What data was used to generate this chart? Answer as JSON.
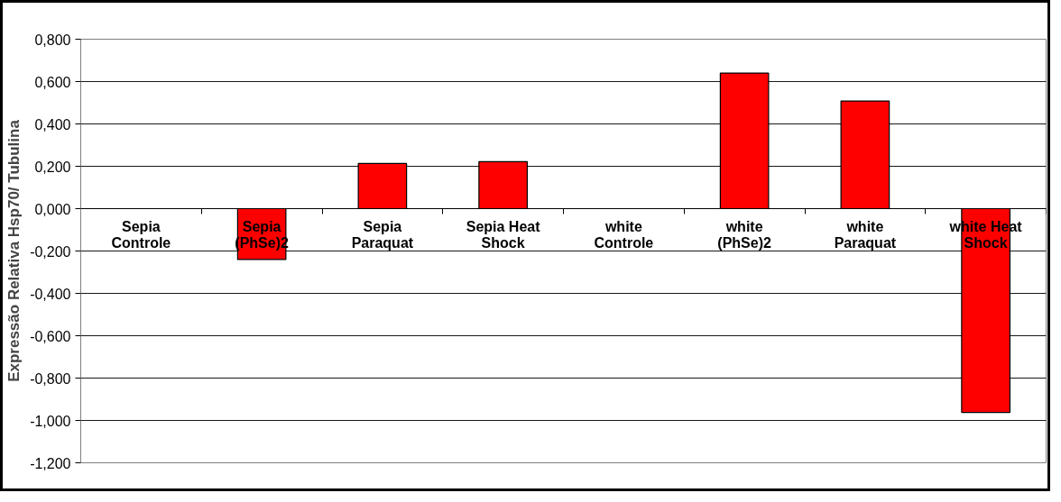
{
  "chart_data": {
    "type": "bar",
    "ylabel": "Expressão Relativa Hsp70/ Tubulina",
    "categories": [
      "Sepia\nControle",
      "Sepia\n(PhSe)2",
      "Sepia\nParaquat",
      "Sepia Heat\nShock",
      "white\nControle",
      "white\n(PhSe)2",
      "white\nParaquat",
      "white Heat\nShock"
    ],
    "values": [
      0,
      -0.24,
      0.213,
      0.222,
      0,
      0.64,
      0.508,
      -0.962
    ],
    "color": "#ff0000",
    "ylim": [
      -1.2,
      0.8
    ],
    "yticks": [
      {
        "value": -1.2,
        "label": "-1,200"
      },
      {
        "value": -1.0,
        "label": "-1,000"
      },
      {
        "value": -0.8,
        "label": "-0,800"
      },
      {
        "value": -0.6,
        "label": "-0,600"
      },
      {
        "value": -0.4,
        "label": "-0,400"
      },
      {
        "value": -0.2,
        "label": "-0,200"
      },
      {
        "value": 0,
        "label": "0,000"
      },
      {
        "value": 0.2,
        "label": "0,200"
      },
      {
        "value": 0.4,
        "label": "0,400"
      },
      {
        "value": 0.6,
        "label": "0,600"
      },
      {
        "value": 0.8,
        "label": "0,800"
      }
    ],
    "grid": "y"
  }
}
